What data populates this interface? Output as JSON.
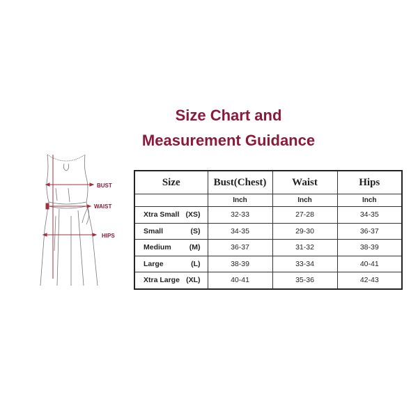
{
  "title": {
    "line1": "Size Chart and",
    "line2": "Measurement Guidance",
    "color": "#8b1a3a"
  },
  "figure": {
    "labels": {
      "bust": "BUST",
      "waist": "WAIST",
      "hips": "HIPS"
    },
    "accent": "#a0303f"
  },
  "table": {
    "headers": [
      "Size",
      "Bust(Chest)",
      "Waist",
      "Hips"
    ],
    "units": [
      "",
      "Inch",
      "Inch",
      "Inch"
    ],
    "rows": [
      {
        "name": "Xtra Small",
        "code": "(XS)",
        "bust": "32-33",
        "waist": "27-28",
        "hips": "34-35"
      },
      {
        "name": "Small",
        "code": "(S)",
        "bust": "34-35",
        "waist": "29-30",
        "hips": "36-37"
      },
      {
        "name": "Medium",
        "code": "(M)",
        "bust": "36-37",
        "waist": "31-32",
        "hips": "38-39"
      },
      {
        "name": "Large",
        "code": "(L)",
        "bust": "38-39",
        "waist": "33-34",
        "hips": "40-41"
      },
      {
        "name": "Xtra Large",
        "code": "(XL)",
        "bust": "40-41",
        "waist": "35-36",
        "hips": "42-43"
      }
    ]
  }
}
